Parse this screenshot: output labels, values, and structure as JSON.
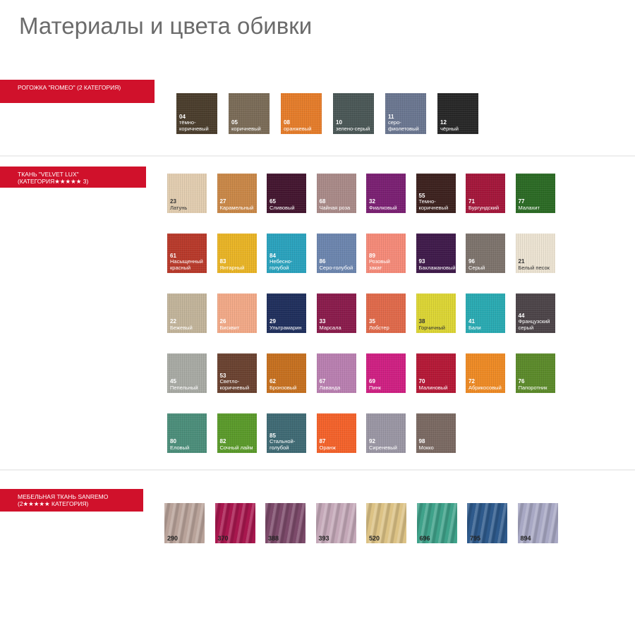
{
  "title": "Материалы и цвета обивки",
  "sections": [
    {
      "banner": "Рогожка \"ROMEO\" (2 категория)",
      "swatches": [
        {
          "num": "04",
          "name": "тёмно-коричневый",
          "color": "#4a3d2c"
        },
        {
          "num": "05",
          "name": "коричневый",
          "color": "#7a6b57"
        },
        {
          "num": "08",
          "name": "оранжевый",
          "color": "#e57c2a"
        },
        {
          "num": "10",
          "name": "зелено-серый",
          "color": "#4a5756"
        },
        {
          "num": "11",
          "name": "серо-фиолетовый",
          "color": "#6a7690"
        },
        {
          "num": "12",
          "name": "чёрный",
          "color": "#272727"
        }
      ]
    },
    {
      "banner": "Ткань \"VELVET LUX\" (категория★★★★★ 3)",
      "swatches": [
        {
          "num": "23",
          "name": "Латунь",
          "color": "#e2cdb0"
        },
        {
          "num": "27",
          "name": "Карамельный",
          "color": "#c98747"
        },
        {
          "num": "65",
          "name": "Сливовый",
          "color": "#43152f"
        },
        {
          "num": "68",
          "name": "Чайная роза",
          "color": "#a98a88"
        },
        {
          "num": "32",
          "name": "Фиалковый",
          "color": "#7a1f72"
        },
        {
          "num": "55",
          "name": "Темно-коричневый",
          "color": "#3c211e"
        },
        {
          "num": "71",
          "name": "Бургундский",
          "color": "#a4163a"
        },
        {
          "num": "77",
          "name": "Малахит",
          "color": "#2b6a24"
        },
        {
          "num": "61",
          "name": "Насыщенный красный",
          "color": "#b8392a"
        },
        {
          "num": "83",
          "name": "Янтарный",
          "color": "#e9b425"
        },
        {
          "num": "84",
          "name": "Небесно-голубой",
          "color": "#2aa2bd"
        },
        {
          "num": "86",
          "name": "Серо-голубой",
          "color": "#6c85ae"
        },
        {
          "num": "89",
          "name": "Розовый закат",
          "color": "#f58a78"
        },
        {
          "num": "93",
          "name": "Баклажановый",
          "color": "#3f1a4a"
        },
        {
          "num": "96",
          "name": "Серый",
          "color": "#7d736c"
        },
        {
          "num": "21",
          "name": "Белый песок",
          "color": "#ece3d2"
        },
        {
          "num": "22",
          "name": "Бежевый",
          "color": "#c2b49a"
        },
        {
          "num": "26",
          "name": "Бисквит",
          "color": "#f2a987"
        },
        {
          "num": "29",
          "name": "Ультрамарин",
          "color": "#1f2f5c"
        },
        {
          "num": "33",
          "name": "Марсала",
          "color": "#8a1b4b"
        },
        {
          "num": "35",
          "name": "Лобстер",
          "color": "#e0694a"
        },
        {
          "num": "38",
          "name": "Горчичный",
          "color": "#dcd534"
        },
        {
          "num": "41",
          "name": "Бали",
          "color": "#29aab2"
        },
        {
          "num": "44",
          "name": "Французский серый",
          "color": "#4c4448"
        },
        {
          "num": "45",
          "name": "Пепельный",
          "color": "#a8aaa4"
        },
        {
          "num": "53",
          "name": "Светло-коричневый",
          "color": "#6a4230"
        },
        {
          "num": "62",
          "name": "Бронзовый",
          "color": "#c6701f"
        },
        {
          "num": "67",
          "name": "Лаванда",
          "color": "#b97fb0"
        },
        {
          "num": "69",
          "name": "Пинк",
          "color": "#cf1f82"
        },
        {
          "num": "70",
          "name": "Малиновый",
          "color": "#b51836"
        },
        {
          "num": "72",
          "name": "Абрикосовый",
          "color": "#ee8a24"
        },
        {
          "num": "76",
          "name": "Папоротник",
          "color": "#5b8a2a"
        },
        {
          "num": "80",
          "name": "Еловый",
          "color": "#4b8e7a"
        },
        {
          "num": "82",
          "name": "Сочный лайм",
          "color": "#5a9a2a"
        },
        {
          "num": "85",
          "name": "Стальной-голубой",
          "color": "#3f6a74"
        },
        {
          "num": "87",
          "name": "Оранж",
          "color": "#f4622a"
        },
        {
          "num": "92",
          "name": "Сиреневый",
          "color": "#9a96a4"
        },
        {
          "num": "98",
          "name": "Мокко",
          "color": "#7a6962"
        }
      ]
    },
    {
      "banner": "Мебельная ткань SANREMO (2★★★★★ категория)",
      "swatches": [
        {
          "num": "290",
          "color": "#b9a39a"
        },
        {
          "num": "370",
          "color": "#a8174e"
        },
        {
          "num": "388",
          "color": "#7c4a6a"
        },
        {
          "num": "393",
          "color": "#c4a8b8"
        },
        {
          "num": "520",
          "color": "#dcc285"
        },
        {
          "num": "696",
          "color": "#3fa28a"
        },
        {
          "num": "795",
          "color": "#2e5a8c"
        },
        {
          "num": "894",
          "color": "#a8a8c4"
        }
      ]
    }
  ]
}
